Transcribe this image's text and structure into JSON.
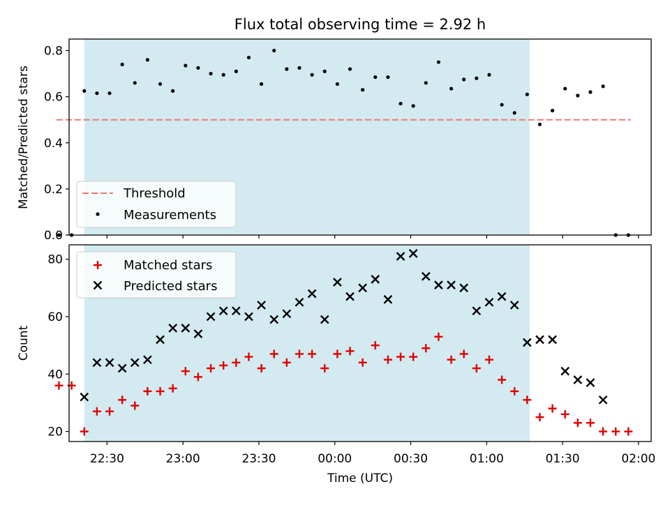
{
  "figure": {
    "title": "Flux total observing time = 2.92 h",
    "xlabel": "Time (UTC)",
    "x_tick_labels": [
      "22:30",
      "23:00",
      "23:30",
      "00:00",
      "00:30",
      "01:00",
      "01:30",
      "02:00"
    ],
    "colors": {
      "observing_span": "#d3eaf0",
      "threshold": "#f07878",
      "measurements": "#000000",
      "matched": "#e00000",
      "predicted": "#000000"
    }
  },
  "chart_data": [
    {
      "type": "scatter",
      "panel": "top",
      "ylabel": "Matched/Predicted stars",
      "xlim": [
        "22:15",
        "02:05"
      ],
      "ylim": [
        0,
        0.85
      ],
      "y_tick_labels": [
        "0.0",
        "0.2",
        "0.4",
        "0.6",
        "0.8"
      ],
      "observing_span": [
        "22:21",
        "01:17"
      ],
      "legend_placement": "lower-left",
      "legend": {
        "threshold": "Threshold",
        "measurements": "Measurements"
      },
      "series": [
        {
          "name": "Threshold",
          "kind": "dashed-line",
          "x": [
            "22:10",
            "01:57"
          ],
          "y": [
            0.5,
            0.5
          ]
        },
        {
          "name": "Measurements",
          "kind": "scatter",
          "x": [
            "22:11",
            "22:16",
            "22:21",
            "22:26",
            "22:31",
            "22:36",
            "22:41",
            "22:46",
            "22:51",
            "22:56",
            "23:01",
            "23:06",
            "23:11",
            "23:16",
            "23:21",
            "23:26",
            "23:31",
            "23:36",
            "23:41",
            "23:46",
            "23:51",
            "23:56",
            "00:01",
            "00:06",
            "00:11",
            "00:16",
            "00:21",
            "00:26",
            "00:31",
            "00:36",
            "00:41",
            "00:46",
            "00:51",
            "00:56",
            "01:01",
            "01:06",
            "01:11",
            "01:16",
            "01:21",
            "01:26",
            "01:31",
            "01:36",
            "01:41",
            "01:46",
            "01:51",
            "01:56"
          ],
          "y": [
            0.0,
            0.0,
            0.625,
            0.615,
            0.615,
            0.74,
            0.66,
            0.76,
            0.655,
            0.625,
            0.735,
            0.725,
            0.7,
            0.695,
            0.71,
            0.77,
            0.655,
            0.8,
            0.72,
            0.725,
            0.695,
            0.71,
            0.655,
            0.72,
            0.63,
            0.685,
            0.685,
            0.57,
            0.56,
            0.66,
            0.75,
            0.635,
            0.675,
            0.68,
            0.695,
            0.565,
            0.53,
            0.61,
            0.48,
            0.54,
            0.635,
            0.605,
            0.62,
            0.645,
            0.0,
            0.0
          ]
        }
      ]
    },
    {
      "type": "scatter",
      "panel": "bottom",
      "ylabel": "Count",
      "xlim": [
        "22:15",
        "02:05"
      ],
      "ylim": [
        16.5,
        85
      ],
      "y_tick_labels": [
        "20",
        "40",
        "60",
        "80"
      ],
      "observing_span": [
        "22:21",
        "01:17"
      ],
      "legend_placement": "upper-left",
      "legend": {
        "matched": "Matched stars",
        "predicted": "Predicted stars"
      },
      "series": [
        {
          "name": "Matched stars",
          "marker": "plus",
          "x": [
            "22:11",
            "22:16",
            "22:21",
            "22:26",
            "22:31",
            "22:36",
            "22:41",
            "22:46",
            "22:51",
            "22:56",
            "23:01",
            "23:06",
            "23:11",
            "23:16",
            "23:21",
            "23:26",
            "23:31",
            "23:36",
            "23:41",
            "23:46",
            "23:51",
            "23:56",
            "00:01",
            "00:06",
            "00:11",
            "00:16",
            "00:21",
            "00:26",
            "00:31",
            "00:36",
            "00:41",
            "00:46",
            "00:51",
            "00:56",
            "01:01",
            "01:06",
            "01:11",
            "01:16",
            "01:21",
            "01:26",
            "01:31",
            "01:36",
            "01:41",
            "01:46",
            "01:51",
            "01:56"
          ],
          "y": [
            36,
            36,
            20,
            27,
            27,
            31,
            29,
            34,
            34,
            35,
            41,
            39,
            42,
            43,
            44,
            46,
            42,
            47,
            44,
            47,
            47,
            42,
            47,
            48,
            44,
            50,
            45,
            46,
            46,
            49,
            53,
            45,
            47,
            42,
            45,
            38,
            34,
            31,
            25,
            28,
            26,
            23,
            23,
            20,
            20,
            20
          ]
        },
        {
          "name": "Predicted stars",
          "marker": "x",
          "x": [
            "22:21",
            "22:26",
            "22:31",
            "22:36",
            "22:41",
            "22:46",
            "22:51",
            "22:56",
            "23:01",
            "23:06",
            "23:11",
            "23:16",
            "23:21",
            "23:26",
            "23:31",
            "23:36",
            "23:41",
            "23:46",
            "23:51",
            "23:56",
            "00:01",
            "00:06",
            "00:11",
            "00:16",
            "00:21",
            "00:26",
            "00:31",
            "00:36",
            "00:41",
            "00:46",
            "00:51",
            "00:56",
            "01:01",
            "01:06",
            "01:11",
            "01:16",
            "01:21",
            "01:26",
            "01:31",
            "01:36",
            "01:41",
            "01:46"
          ],
          "y": [
            32,
            44,
            44,
            42,
            44,
            45,
            52,
            56,
            56,
            54,
            60,
            62,
            62,
            60,
            64,
            59,
            61,
            65,
            68,
            59,
            72,
            67,
            70,
            73,
            66,
            81,
            82,
            74,
            71,
            71,
            70,
            62,
            65,
            67,
            64,
            51,
            52,
            52,
            41,
            38,
            37,
            31
          ]
        }
      ]
    }
  ]
}
